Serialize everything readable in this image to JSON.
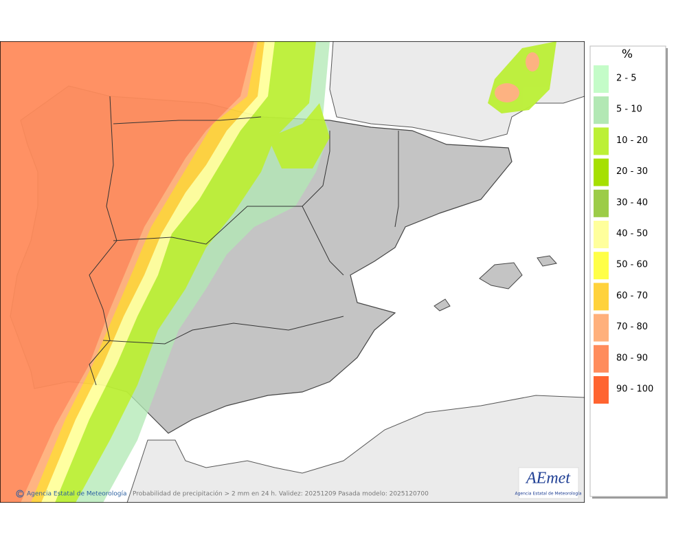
{
  "legend": {
    "title": "%",
    "items": [
      {
        "label": "2 - 5",
        "color": "#c4fcc8"
      },
      {
        "label": "5 - 10",
        "color": "#b2e8b4"
      },
      {
        "label": "10 - 20",
        "color": "#bcf036"
      },
      {
        "label": "20 - 30",
        "color": "#a6e000"
      },
      {
        "label": "30 - 40",
        "color": "#9ccc48"
      },
      {
        "label": "40 - 50",
        "color": "#ffff9c"
      },
      {
        "label": "50 - 60",
        "color": "#ffff48"
      },
      {
        "label": "60 - 70",
        "color": "#ffd23c"
      },
      {
        "label": "70 - 80",
        "color": "#ffb07c"
      },
      {
        "label": "80 - 90",
        "color": "#ff8c5c"
      },
      {
        "label": "90 - 100",
        "color": "#ff6430"
      }
    ]
  },
  "footer": {
    "credit": "Agencia Estatal de Meteorología",
    "caption": "Probabilidad de precipitación > 2 mm en 24 h. Validez: 20251209 Pasada modelo: 2025120700"
  },
  "logo": {
    "name": "AEmet",
    "subtitle": "Agencia Estatal de Meteorología"
  }
}
